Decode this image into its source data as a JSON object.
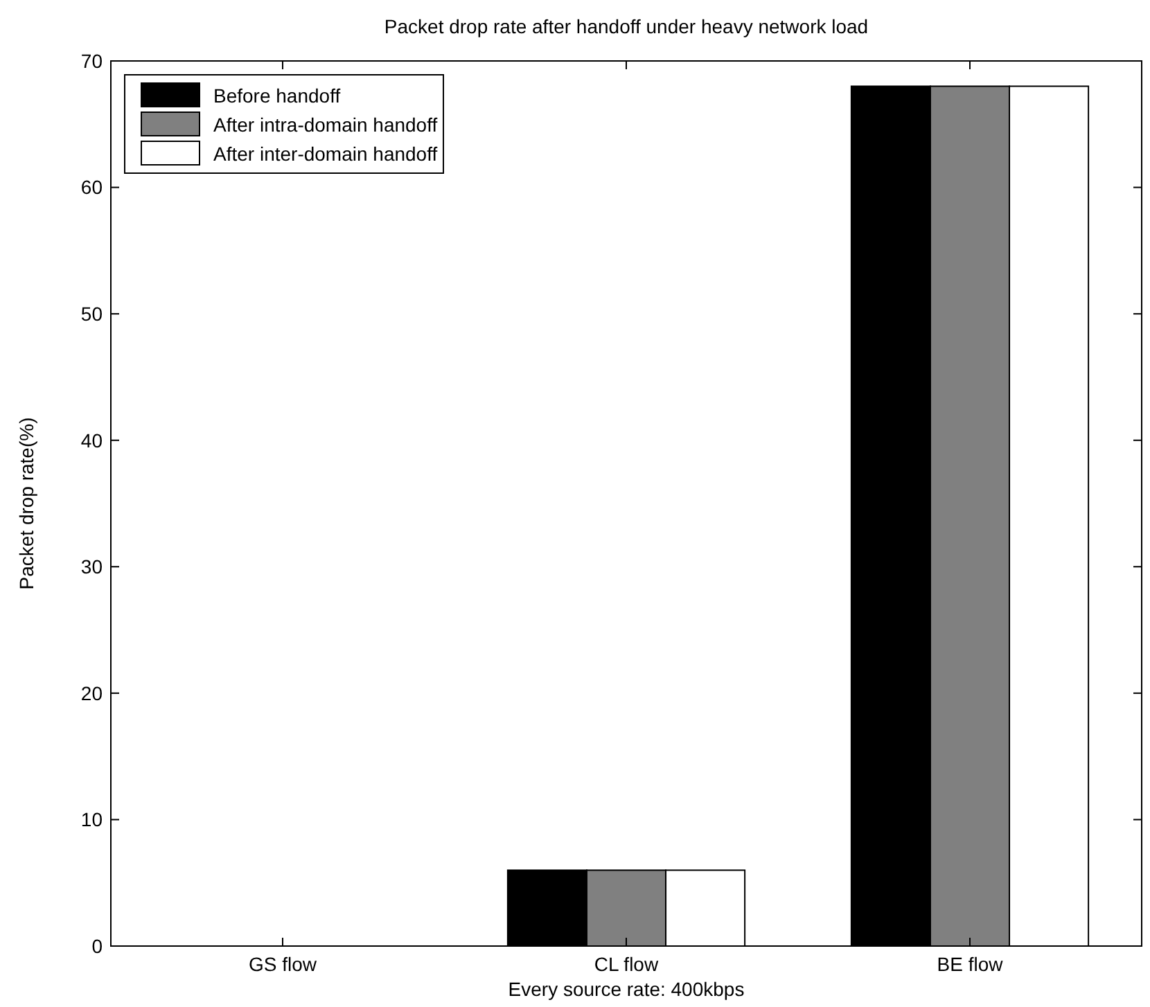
{
  "chart_data": {
    "type": "bar",
    "title": "Packet drop rate after handoff under heavy network load",
    "xlabel": "Every source rate: 400kbps",
    "ylabel": "Packet drop rate(%)",
    "categories": [
      "GS flow",
      "CL flow",
      "BE flow"
    ],
    "series": [
      {
        "name": "Before handoff",
        "color": "#000000",
        "values": [
          0,
          6,
          68
        ]
      },
      {
        "name": "After intra-domain handoff",
        "color": "#808080",
        "values": [
          0,
          6,
          68
        ]
      },
      {
        "name": "After inter-domain handoff",
        "color": "#ffffff",
        "values": [
          0,
          6,
          68
        ]
      }
    ],
    "ylim": [
      0,
      70
    ],
    "yticks": [
      0,
      10,
      20,
      30,
      40,
      50,
      60,
      70
    ],
    "grid": false,
    "legend": "top left"
  }
}
